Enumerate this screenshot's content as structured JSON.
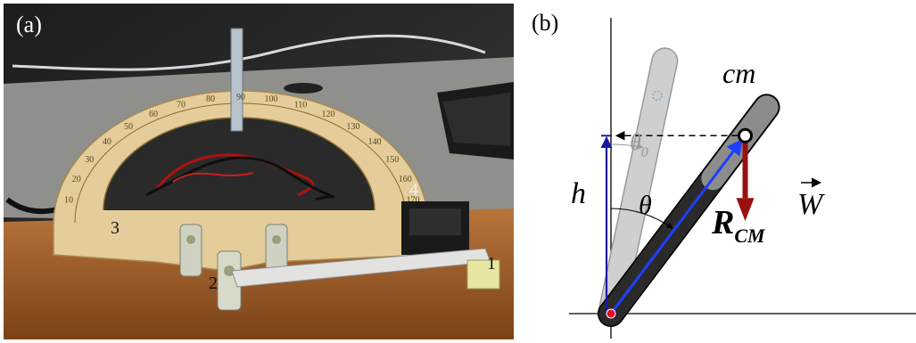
{
  "panel_a": {
    "label": "(a)",
    "part_labels": [
      "1",
      "2",
      "3",
      "4"
    ],
    "scale_outer": [
      "10",
      "20",
      "30",
      "40",
      "50",
      "60",
      "70",
      "80",
      "90",
      "100",
      "110",
      "120",
      "130",
      "140",
      "150",
      "160",
      "170"
    ],
    "scale_inner": [
      "170",
      "160",
      "150",
      "140",
      "130",
      "120",
      "110",
      "100",
      "80",
      "70",
      "60",
      "50",
      "40",
      "30",
      "20",
      "10"
    ]
  },
  "panel_b": {
    "label": "(b)",
    "cm_label": "cm",
    "h_label": "h",
    "theta_label": "θ",
    "theta0_label": "θ",
    "theta0_sub": "0",
    "rcm_label": "R",
    "rcm_sub": "CM",
    "w_label": "W",
    "theta0_deg": 12,
    "theta_deg": 37,
    "colors": {
      "h_arrow": "#1a1aa0",
      "r_arrow": "#1f3fff",
      "w_arrow": "#9a1010",
      "pivot": "#e0102a",
      "ghost_bar": "#cfcfcf",
      "dark_bar": "#1c1c1c"
    }
  }
}
